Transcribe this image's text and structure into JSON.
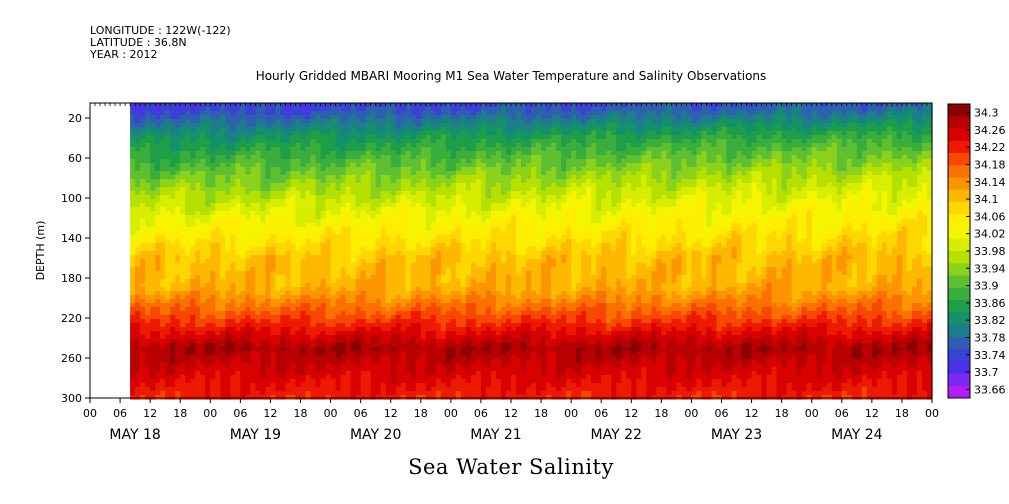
{
  "header": {
    "longitude": "LONGITUDE : 122W(-122)",
    "latitude": "LATITUDE : 36.8N",
    "year": "YEAR : 2012"
  },
  "title": "Hourly Gridded MBARI Mooring M1 Sea Water Temperature and Salinity Observations",
  "bottom_title": "Sea Water Salinity",
  "chart_data": {
    "type": "heatmap",
    "title": "Hourly Gridded MBARI Mooring M1 Sea Water Temperature and Salinity Observations",
    "xlabel": "",
    "ylabel": "DEPTH (m)",
    "ylim": [
      300,
      5
    ],
    "yticks": [
      20,
      60,
      100,
      140,
      180,
      220,
      260,
      300
    ],
    "xlim_hours": [
      0,
      168
    ],
    "data_start_hour": 8,
    "hour_ticks": [
      "00",
      "06",
      "12",
      "18",
      "00",
      "06",
      "12",
      "18",
      "00",
      "06",
      "12",
      "18",
      "00",
      "06",
      "12",
      "18",
      "00",
      "06",
      "12",
      "18",
      "00",
      "06",
      "12",
      "18",
      "00",
      "06",
      "12",
      "18",
      "00"
    ],
    "day_labels": [
      "MAY 18",
      "MAY 19",
      "MAY 20",
      "MAY 21",
      "MAY 22",
      "MAY 23",
      "MAY 24"
    ],
    "colorbar": {
      "labels": [
        "34.3",
        "34.26",
        "34.22",
        "34.18",
        "34.14",
        "34.1",
        "34.06",
        "34.02",
        "33.98",
        "33.94",
        "33.9",
        "33.86",
        "33.82",
        "33.78",
        "33.74",
        "33.7",
        "33.66"
      ],
      "colors": [
        "#8b0000",
        "#b80000",
        "#d90000",
        "#ee1a00",
        "#f84800",
        "#fc7000",
        "#fd9500",
        "#ffb800",
        "#ffd700",
        "#ffee00",
        "#f5f500",
        "#d8ee00",
        "#b5e000",
        "#8ad21c",
        "#5ec030",
        "#3aae3c",
        "#1f9e4a",
        "#14906a",
        "#1e7d8a",
        "#2f5fb0",
        "#3a42d6",
        "#4a30ea",
        "#7a28f2",
        "#b41cf7"
      ]
    },
    "profile_mean": [
      {
        "depth": 10,
        "salinity": 33.75
      },
      {
        "depth": 40,
        "salinity": 33.84
      },
      {
        "depth": 80,
        "salinity": 33.93
      },
      {
        "depth": 120,
        "salinity": 34.02
      },
      {
        "depth": 160,
        "salinity": 34.1
      },
      {
        "depth": 190,
        "salinity": 34.12
      },
      {
        "depth": 220,
        "salinity": 34.2
      },
      {
        "depth": 250,
        "salinity": 34.29
      },
      {
        "depth": 270,
        "salinity": 34.26
      },
      {
        "depth": 300,
        "salinity": 34.22
      }
    ]
  }
}
